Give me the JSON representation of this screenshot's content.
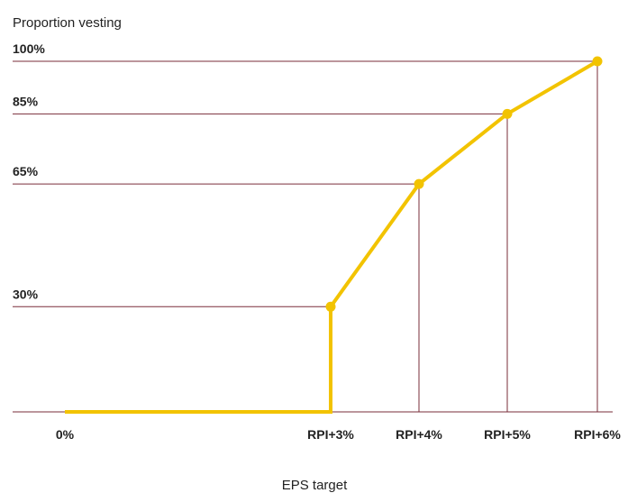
{
  "chart_data": {
    "type": "line",
    "title": "",
    "ylabel": "Proportion vesting",
    "xlabel": "EPS target",
    "categories": [
      "0%",
      "RPI+3%",
      "RPI+4%",
      "RPI+5%",
      "RPI+6%"
    ],
    "y_ticks": [
      "30%",
      "65%",
      "85%",
      "100%"
    ],
    "ylim": [
      0,
      100
    ],
    "series": [
      {
        "color": "#f2c300",
        "points": [
          {
            "x": "0%",
            "y": 0
          },
          {
            "x": "RPI+3%",
            "y": 0
          },
          {
            "x": "RPI+3%",
            "y": 30
          },
          {
            "x": "RPI+4%",
            "y": 65
          },
          {
            "x": "RPI+5%",
            "y": 85
          },
          {
            "x": "RPI+6%",
            "y": 100
          }
        ],
        "markers": [
          {
            "x": "RPI+3%",
            "y": 30
          },
          {
            "x": "RPI+4%",
            "y": 65
          },
          {
            "x": "RPI+5%",
            "y": 85
          },
          {
            "x": "RPI+6%",
            "y": 100
          }
        ]
      }
    ],
    "grid": true,
    "gridline_color": "#7a2e3a"
  }
}
